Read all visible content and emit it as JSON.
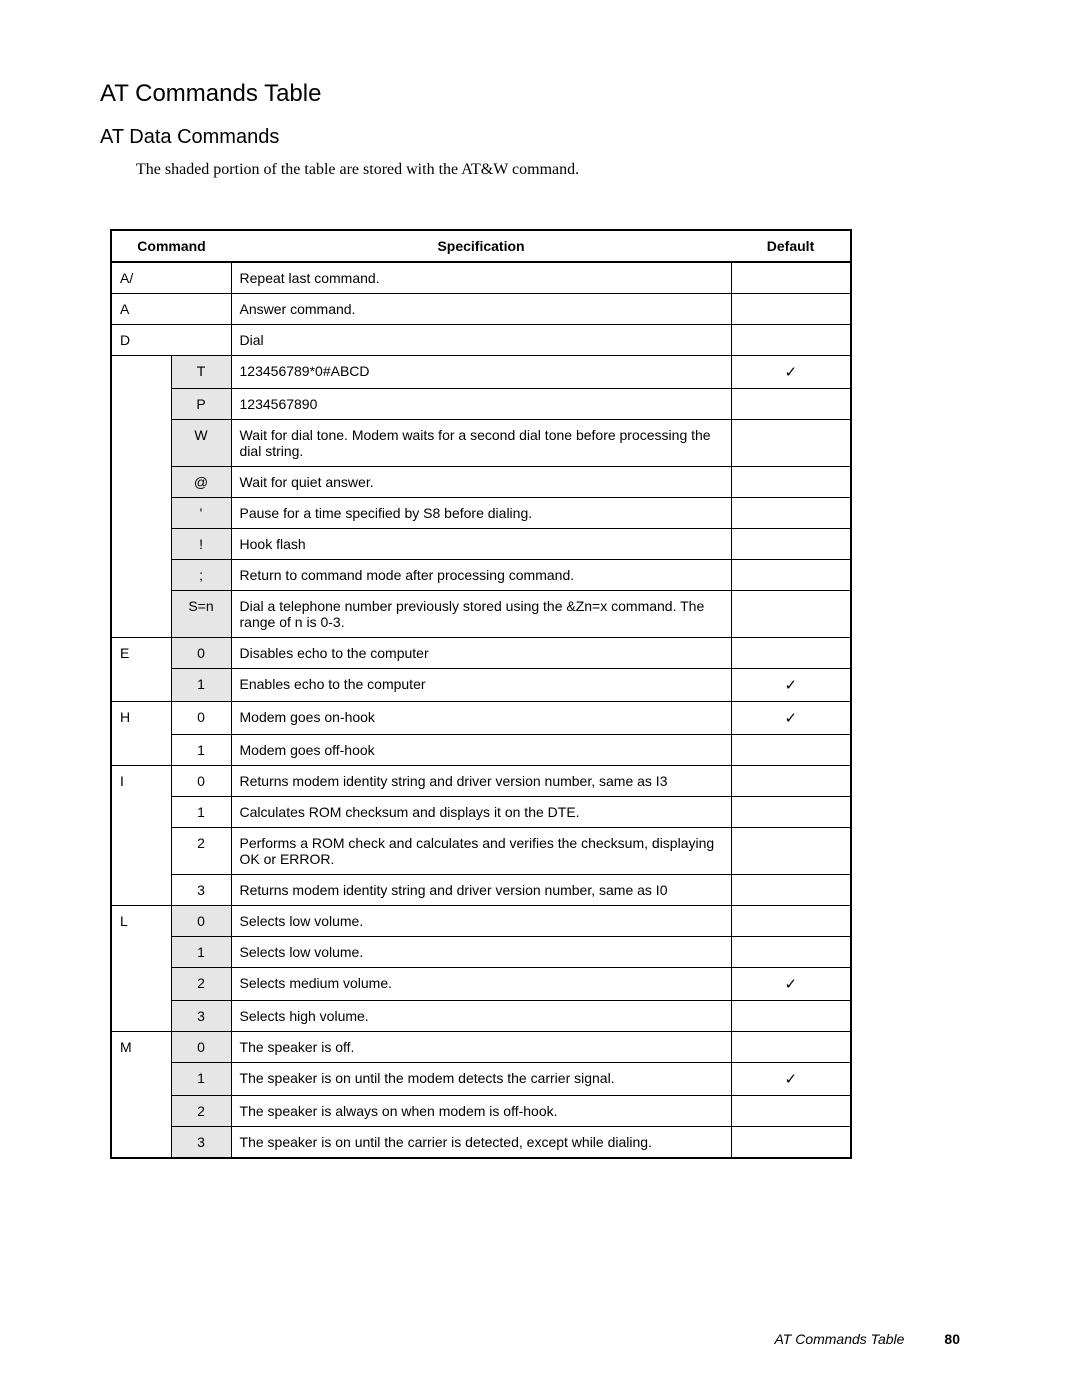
{
  "title": "AT Commands Table",
  "subtitle": "AT Data Commands",
  "intro": "The shaded portion of the table are stored with the AT&W command.",
  "headers": {
    "command": "Command",
    "specification": "Specification",
    "default": "Default"
  },
  "check_glyph": "✓",
  "colors": {
    "shaded": "#e6e6e6",
    "border": "#000000",
    "background": "#ffffff"
  },
  "footer": {
    "title": "AT Commands Table",
    "page": "80"
  },
  "rows": [
    {
      "cmd": "A/",
      "spec": "Repeat last command.",
      "colspanCmd": 2
    },
    {
      "cmd": "A",
      "spec": "Answer command.",
      "colspanCmd": 2
    },
    {
      "cmd": "D",
      "spec": "Dial",
      "colspanCmd": 2
    },
    {
      "cmd": "",
      "sub": "T",
      "spec": "123456789*0#ABCD",
      "default": true,
      "shaded": true,
      "cmdRowspan": 8
    },
    {
      "sub": "P",
      "spec": "1234567890",
      "shaded": true
    },
    {
      "sub": "W",
      "spec": "Wait for dial tone. Modem waits for a second dial tone before processing the dial string.",
      "shaded": true
    },
    {
      "sub": "@",
      "spec": "Wait for quiet answer.",
      "shaded": true
    },
    {
      "sub": "'",
      "spec": "Pause for a time specified by S8 before dialing.",
      "shaded": true
    },
    {
      "sub": "!",
      "spec": "Hook flash",
      "shaded": true
    },
    {
      "sub": ";",
      "spec": "Return to command mode after processing command.",
      "shaded": true
    },
    {
      "sub": "S=n",
      "spec": "Dial a telephone number previously stored using the &Zn=x command. The range of n is 0-3.",
      "shaded": true
    },
    {
      "cmd": "E",
      "sub": "0",
      "spec": "Disables echo to the computer",
      "shaded": true,
      "cmdRowspan": 2
    },
    {
      "sub": "1",
      "spec": "Enables echo to the computer",
      "default": true,
      "shaded": true
    },
    {
      "cmd": "H",
      "sub": "0",
      "spec": "Modem goes on-hook",
      "default": true,
      "cmdRowspan": 2
    },
    {
      "sub": "1",
      "spec": "Modem goes off-hook"
    },
    {
      "cmd": "I",
      "sub": "0",
      "spec": "Returns modem identity string and driver version number, same as I3",
      "cmdRowspan": 4
    },
    {
      "sub": "1",
      "spec": "Calculates ROM checksum and displays it on the DTE."
    },
    {
      "sub": "2",
      "spec": "Performs a ROM check and calculates and verifies the checksum, displaying OK or ERROR."
    },
    {
      "sub": "3",
      "spec": "Returns modem identity string and driver version number, same as I0"
    },
    {
      "cmd": "L",
      "sub": "0",
      "spec": "Selects low volume.",
      "shaded": true,
      "cmdRowspan": 4
    },
    {
      "sub": "1",
      "spec": "Selects low volume.",
      "shaded": true
    },
    {
      "sub": "2",
      "spec": "Selects medium volume.",
      "default": true,
      "shaded": true
    },
    {
      "sub": "3",
      "spec": "Selects high volume.",
      "shaded": true
    },
    {
      "cmd": "M",
      "sub": "0",
      "spec": "The speaker is off.",
      "shaded": true,
      "cmdRowspan": 4
    },
    {
      "sub": "1",
      "spec": "The speaker is on until the modem detects the carrier signal.",
      "default": true,
      "shaded": true
    },
    {
      "sub": "2",
      "spec": "The speaker is always on when modem is off-hook.",
      "shaded": true
    },
    {
      "sub": "3",
      "spec": "The speaker is on until the carrier is detected, except while dialing.",
      "shaded": true
    }
  ]
}
